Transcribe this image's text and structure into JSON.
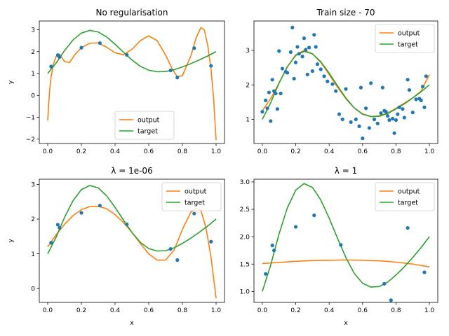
{
  "figure": {
    "width": 640,
    "height": 480
  },
  "colors": {
    "output": "#ff7f0e",
    "target": "#2ca02c",
    "points": "#1f77b4",
    "axis": "#000000"
  },
  "chart_data": [
    {
      "type": "line",
      "title": "No regularisation",
      "xlabel": "",
      "ylabel": "y",
      "xlim": [
        -0.05,
        1.05
      ],
      "ylim": [
        -2.2,
        3.4
      ],
      "xticks": [
        0.0,
        0.2,
        0.4,
        0.6,
        0.8,
        1.0
      ],
      "xtick_labels": [
        "0.0",
        "0.2",
        "0.4",
        "0.6",
        "0.8",
        "1.0"
      ],
      "yticks": [
        -2,
        -1,
        0,
        1,
        2,
        3
      ],
      "ytick_labels": [
        "−2",
        "−1",
        "0",
        "1",
        "2",
        "3"
      ],
      "legend": {
        "position": "lower-center",
        "entries": [
          "output",
          "target"
        ]
      },
      "scatter": {
        "x": [
          0.02,
          0.06,
          0.07,
          0.2,
          0.31,
          0.47,
          0.73,
          0.77,
          0.87,
          0.97
        ],
        "y": [
          1.32,
          1.84,
          1.75,
          2.18,
          2.39,
          1.85,
          1.14,
          0.82,
          2.16,
          1.35
        ]
      },
      "series": [
        {
          "name": "output",
          "x": [
            0.0,
            0.01,
            0.02,
            0.035,
            0.05,
            0.07,
            0.1,
            0.13,
            0.16,
            0.2,
            0.25,
            0.3,
            0.35,
            0.4,
            0.45,
            0.5,
            0.55,
            0.6,
            0.65,
            0.7,
            0.74,
            0.77,
            0.8,
            0.85,
            0.88,
            0.91,
            0.93,
            0.95,
            0.97,
            0.985,
            1.0
          ],
          "y": [
            -1.15,
            0.1,
            0.85,
            1.45,
            1.78,
            1.88,
            1.55,
            1.5,
            1.85,
            2.18,
            2.38,
            2.4,
            2.2,
            1.95,
            1.85,
            2.1,
            2.5,
            2.72,
            2.5,
            1.85,
            1.2,
            0.85,
            0.9,
            1.8,
            2.6,
            3.1,
            3.0,
            2.3,
            1.2,
            -0.1,
            -2.05
          ]
        },
        {
          "name": "target",
          "x": [
            0.0,
            0.05,
            0.1,
            0.15,
            0.2,
            0.25,
            0.3,
            0.35,
            0.4,
            0.45,
            0.5,
            0.55,
            0.6,
            0.65,
            0.7,
            0.75,
            0.8,
            0.85,
            0.9,
            0.95,
            1.0
          ],
          "y": [
            1.0,
            1.48,
            2.05,
            2.53,
            2.85,
            2.97,
            2.9,
            2.67,
            2.34,
            1.97,
            1.62,
            1.33,
            1.15,
            1.08,
            1.09,
            1.17,
            1.3,
            1.45,
            1.62,
            1.8,
            2.0
          ]
        }
      ]
    },
    {
      "type": "line",
      "title": "Train size - 70",
      "xlabel": "",
      "ylabel": "",
      "xlim": [
        -0.05,
        1.05
      ],
      "ylim": [
        0.3,
        3.85
      ],
      "xticks": [
        0.0,
        0.2,
        0.4,
        0.6,
        0.8,
        1.0
      ],
      "xtick_labels": [
        "0.0",
        "0.2",
        "0.4",
        "0.6",
        "0.8",
        "1.0"
      ],
      "yticks": [
        1,
        2,
        3
      ],
      "ytick_labels": [
        "1",
        "2",
        "3"
      ],
      "legend": {
        "position": "top-right",
        "entries": [
          "output",
          "target"
        ]
      },
      "scatter": {
        "x": [
          0.0,
          0.02,
          0.03,
          0.04,
          0.05,
          0.06,
          0.07,
          0.08,
          0.09,
          0.1,
          0.11,
          0.12,
          0.14,
          0.15,
          0.17,
          0.18,
          0.19,
          0.2,
          0.21,
          0.22,
          0.24,
          0.25,
          0.26,
          0.27,
          0.28,
          0.3,
          0.31,
          0.32,
          0.33,
          0.35,
          0.37,
          0.39,
          0.42,
          0.44,
          0.46,
          0.48,
          0.5,
          0.53,
          0.56,
          0.58,
          0.59,
          0.6,
          0.62,
          0.64,
          0.65,
          0.67,
          0.69,
          0.71,
          0.72,
          0.73,
          0.74,
          0.75,
          0.76,
          0.78,
          0.79,
          0.8,
          0.81,
          0.82,
          0.84,
          0.85,
          0.87,
          0.88,
          0.9,
          0.92,
          0.94,
          0.95,
          0.96,
          0.97,
          0.98
        ],
        "y": [
          1.22,
          1.55,
          1.32,
          1.78,
          0.95,
          2.15,
          1.82,
          1.75,
          1.3,
          2.98,
          1.75,
          2.47,
          2.38,
          2.35,
          2.95,
          3.66,
          2.18,
          2.65,
          3.1,
          2.9,
          2.82,
          3.35,
          3.02,
          2.3,
          3.08,
          2.4,
          3.45,
          3.1,
          2.6,
          2.45,
          2.25,
          2.1,
          2.02,
          1.82,
          1.15,
          1.0,
          1.88,
          0.92,
          1.0,
          0.8,
          1.92,
          0.45,
          1.32,
          0.75,
          2.05,
          1.0,
          0.88,
          1.18,
          1.92,
          1.25,
          1.22,
          1.1,
          0.98,
          1.02,
          0.6,
          0.98,
          1.15,
          1.35,
          1.3,
          1.05,
          2.15,
          1.85,
          1.2,
          1.58,
          1.6,
          1.55,
          1.95,
          1.35,
          2.25
        ]
      },
      "series": [
        {
          "name": "output",
          "x": [
            0.0,
            0.05,
            0.1,
            0.15,
            0.2,
            0.25,
            0.3,
            0.35,
            0.4,
            0.45,
            0.5,
            0.55,
            0.6,
            0.65,
            0.7,
            0.75,
            0.8,
            0.85,
            0.9,
            0.95,
            1.0
          ],
          "y": [
            1.25,
            1.6,
            2.05,
            2.52,
            2.87,
            3.0,
            2.9,
            2.65,
            2.3,
            1.93,
            1.6,
            1.33,
            1.16,
            1.08,
            1.1,
            1.18,
            1.32,
            1.47,
            1.62,
            1.82,
            2.3
          ]
        },
        {
          "name": "target",
          "x": [
            0.0,
            0.05,
            0.1,
            0.15,
            0.2,
            0.25,
            0.3,
            0.35,
            0.4,
            0.45,
            0.5,
            0.55,
            0.6,
            0.65,
            0.7,
            0.75,
            0.8,
            0.85,
            0.9,
            0.95,
            1.0
          ],
          "y": [
            1.0,
            1.48,
            2.05,
            2.53,
            2.85,
            2.97,
            2.9,
            2.67,
            2.34,
            1.97,
            1.62,
            1.33,
            1.15,
            1.08,
            1.09,
            1.17,
            1.3,
            1.45,
            1.62,
            1.8,
            2.0
          ]
        }
      ]
    },
    {
      "type": "line",
      "title": "λ = 1e-06",
      "xlabel": "x",
      "ylabel": "y",
      "xlim": [
        -0.05,
        1.05
      ],
      "ylim": [
        -0.4,
        3.15
      ],
      "xticks": [
        0.0,
        0.2,
        0.4,
        0.6,
        0.8,
        1.0
      ],
      "xtick_labels": [
        "0.0",
        "0.2",
        "0.4",
        "0.6",
        "0.8",
        "1.0"
      ],
      "yticks": [
        0,
        1,
        2,
        3
      ],
      "ytick_labels": [
        "0",
        "1",
        "2",
        "3"
      ],
      "legend": {
        "position": "top-right",
        "entries": [
          "output",
          "target"
        ]
      },
      "scatter": {
        "x": [
          0.02,
          0.06,
          0.07,
          0.2,
          0.31,
          0.47,
          0.73,
          0.77,
          0.87,
          0.97
        ],
        "y": [
          1.32,
          1.84,
          1.75,
          2.18,
          2.39,
          1.85,
          1.14,
          0.82,
          2.16,
          1.35
        ]
      },
      "series": [
        {
          "name": "output",
          "x": [
            0.0,
            0.05,
            0.1,
            0.15,
            0.2,
            0.25,
            0.3,
            0.35,
            0.4,
            0.45,
            0.5,
            0.55,
            0.6,
            0.65,
            0.7,
            0.75,
            0.8,
            0.85,
            0.88,
            0.91,
            0.94,
            0.97,
            1.0
          ],
          "y": [
            1.2,
            1.55,
            1.85,
            2.1,
            2.27,
            2.36,
            2.37,
            2.3,
            2.13,
            1.9,
            1.62,
            1.3,
            1.0,
            0.82,
            0.82,
            1.1,
            1.7,
            2.2,
            2.32,
            2.25,
            1.75,
            0.9,
            -0.28
          ]
        },
        {
          "name": "target",
          "x": [
            0.0,
            0.05,
            0.1,
            0.15,
            0.2,
            0.25,
            0.3,
            0.35,
            0.4,
            0.45,
            0.5,
            0.55,
            0.6,
            0.65,
            0.7,
            0.75,
            0.8,
            0.85,
            0.9,
            0.95,
            1.0
          ],
          "y": [
            1.0,
            1.48,
            2.05,
            2.53,
            2.85,
            2.97,
            2.9,
            2.67,
            2.34,
            1.97,
            1.62,
            1.33,
            1.15,
            1.08,
            1.09,
            1.17,
            1.3,
            1.45,
            1.62,
            1.8,
            2.0
          ]
        }
      ]
    },
    {
      "type": "line",
      "title": "λ = 1",
      "xlabel": "x",
      "ylabel": "",
      "xlim": [
        -0.05,
        1.05
      ],
      "ylim": [
        0.8,
        3.05
      ],
      "xticks": [
        0.0,
        0.2,
        0.4,
        0.6,
        0.8,
        1.0
      ],
      "xtick_labels": [
        "0.0",
        "0.2",
        "0.4",
        "0.6",
        "0.8",
        "1.0"
      ],
      "yticks": [
        1.0,
        1.5,
        2.0,
        2.5,
        3.0
      ],
      "ytick_labels": [
        "1.0",
        "1.5",
        "2.0",
        "2.5",
        "3.0"
      ],
      "legend": {
        "position": "top-right",
        "entries": [
          "output",
          "target"
        ]
      },
      "scatter": {
        "x": [
          0.02,
          0.06,
          0.07,
          0.2,
          0.31,
          0.47,
          0.73,
          0.77,
          0.87,
          0.97
        ],
        "y": [
          1.32,
          1.84,
          1.75,
          2.18,
          2.39,
          1.85,
          1.14,
          0.84,
          2.16,
          1.35
        ]
      },
      "series": [
        {
          "name": "output",
          "x": [
            0.0,
            0.1,
            0.2,
            0.3,
            0.4,
            0.5,
            0.6,
            0.7,
            0.8,
            0.9,
            1.0
          ],
          "y": [
            1.51,
            1.53,
            1.55,
            1.565,
            1.57,
            1.575,
            1.57,
            1.56,
            1.535,
            1.5,
            1.45
          ]
        },
        {
          "name": "target",
          "x": [
            0.0,
            0.05,
            0.1,
            0.15,
            0.2,
            0.25,
            0.3,
            0.35,
            0.4,
            0.45,
            0.5,
            0.55,
            0.6,
            0.65,
            0.7,
            0.75,
            0.8,
            0.85,
            0.9,
            0.95,
            1.0
          ],
          "y": [
            1.0,
            1.48,
            2.05,
            2.53,
            2.85,
            2.97,
            2.9,
            2.67,
            2.34,
            1.97,
            1.62,
            1.33,
            1.15,
            1.08,
            1.09,
            1.17,
            1.3,
            1.45,
            1.62,
            1.8,
            2.0
          ]
        }
      ]
    }
  ]
}
